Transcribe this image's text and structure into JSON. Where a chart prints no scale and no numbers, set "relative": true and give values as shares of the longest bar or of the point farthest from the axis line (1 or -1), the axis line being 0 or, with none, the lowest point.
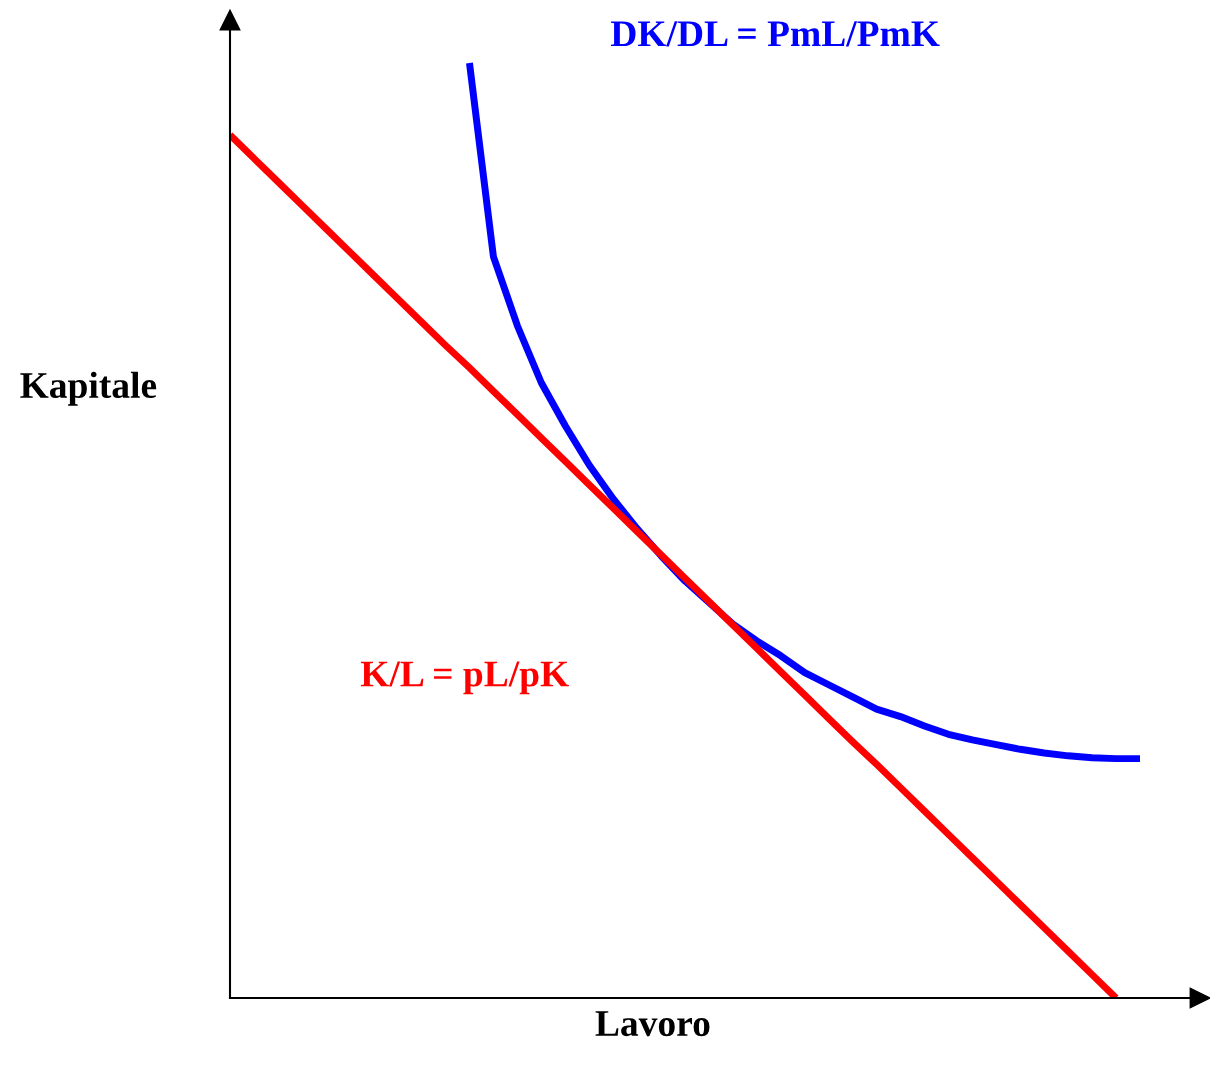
{
  "chart_data": {
    "type": "line",
    "relative": true,
    "xlabel": "Lavoro",
    "ylabel": "Kapitale",
    "marker": "none",
    "line_style": "solid",
    "categories": [
      null,
      null,
      null,
      null,
      null,
      null,
      null,
      null,
      null,
      null,
      null,
      null,
      null,
      null,
      null,
      null,
      null,
      null,
      null,
      null,
      null,
      null,
      null,
      null,
      null,
      null,
      null,
      null,
      null,
      null,
      null,
      null,
      null,
      null,
      null,
      null,
      null,
      null,
      null
    ],
    "series": [
      {
        "name": "DK/DL = PmL/PmK",
        "color": "#0000ff",
        "values": [
          null,
          null,
          null,
          null,
          null,
          null,
          null,
          null,
          null,
          null,
          1.0,
          0.793,
          0.719,
          0.658,
          0.612,
          0.57,
          0.534,
          0.502,
          0.473,
          0.446,
          0.423,
          0.4,
          0.382,
          0.366,
          0.348,
          0.335,
          0.322,
          0.309,
          0.301,
          0.291,
          0.282,
          0.276,
          0.271,
          0.266,
          0.262,
          0.259,
          0.257,
          0.256,
          0.256
        ]
      },
      {
        "name": "K/L = pL/pK",
        "color": "#ff0000",
        "values": [
          0.923,
          0.898,
          0.873,
          0.848,
          0.823,
          0.798,
          0.773,
          0.748,
          0.723,
          0.698,
          0.674,
          0.649,
          0.624,
          0.599,
          0.574,
          0.549,
          0.524,
          0.499,
          0.474,
          0.449,
          0.424,
          0.399,
          0.374,
          0.349,
          0.324,
          0.299,
          0.274,
          0.25,
          0.225,
          0.2,
          0.175,
          0.15,
          0.125,
          0.1,
          0.075,
          0.05,
          0.025,
          0,
          null
        ]
      }
    ]
  }
}
